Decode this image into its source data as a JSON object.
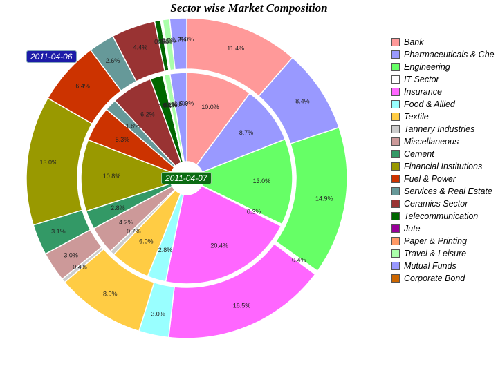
{
  "chart_data": {
    "type": "pie",
    "title": "Sector wise Market Composition",
    "legend_position": "right",
    "categories": [
      "Bank",
      "Pharmaceuticals & Che",
      "Engineering",
      "IT Sector",
      "Insurance",
      "Food & Allied",
      "Textile",
      "Tannery Industries",
      "Miscellaneous",
      "Cement",
      "Financial Institutions",
      "Fuel & Power",
      "Services & Real Estate",
      "Ceramics Sector",
      "Telecommunication",
      "Jute",
      "Paper & Printing",
      "Travel & Leisure",
      "Mutual Funds",
      "Corporate Bond"
    ],
    "colors": [
      "#ff9999",
      "#9999ff",
      "#66ff66",
      "#ffffff",
      "#ff66ff",
      "#99ffff",
      "#ffcc44",
      "#cccccc",
      "#cc9999",
      "#339966",
      "#999900",
      "#cc3300",
      "#669999",
      "#993333",
      "#006600",
      "#990099",
      "#ff9966",
      "#aaffaa",
      "#9999ff",
      "#cc6600"
    ],
    "series": [
      {
        "name": "2011-04-06",
        "ring": "outer",
        "values": [
          11.4,
          8.4,
          14.9,
          0.4,
          16.5,
          3.0,
          8.9,
          0.4,
          3.0,
          3.1,
          13.0,
          6.4,
          2.6,
          4.4,
          0.6,
          0.1,
          0.1,
          0.7,
          1.7,
          0.0
        ]
      },
      {
        "name": "2011-04-07",
        "ring": "inner",
        "values": [
          10.0,
          8.7,
          13.0,
          0.3,
          20.4,
          2.8,
          6.0,
          0.7,
          4.2,
          2.8,
          10.8,
          5.3,
          1.8,
          6.2,
          1.9,
          0.1,
          0.1,
          0.9,
          2.5,
          0.0
        ]
      }
    ],
    "value_suffix": "%"
  }
}
